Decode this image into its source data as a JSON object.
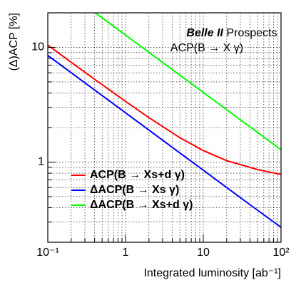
{
  "chart_data": {
    "type": "line",
    "label": "Belle II",
    "title": "Prospects",
    "subtitle": "ACP(B → X γ)",
    "xlabel": "Integrated luminosity [ab⁻¹]",
    "ylabel": "(Δ)ACP [%]",
    "x": [
      0.1,
      0.2,
      0.4,
      1,
      2,
      5,
      10,
      20,
      50,
      100
    ],
    "series": [
      {
        "name": "ACP(B → Xs+d γ)",
        "color": "#ff0000",
        "values": [
          10.46,
          7.41,
          5.27,
          3.38,
          2.44,
          1.63,
          1.26,
          1.03,
          0.86,
          0.78
        ]
      },
      {
        "name": "ΔACP(B → Xs γ)",
        "color": "#0000ff",
        "values": [
          8.5,
          6.01,
          4.25,
          2.69,
          1.9,
          1.2,
          0.85,
          0.6,
          0.38,
          0.27
        ]
      },
      {
        "name": "ΔACP(B → Xs+d γ)",
        "color": "#00ff00",
        "values": [
          null,
          null,
          20.2,
          12.8,
          9.05,
          5.72,
          4.05,
          2.86,
          1.81,
          1.28
        ]
      }
    ],
    "xlim": [
      0.1,
      100
    ],
    "ylim": [
      0.2,
      20
    ],
    "xticks": [
      {
        "value": 0.1,
        "label": "10⁻¹"
      },
      1,
      10,
      {
        "value": 100,
        "label": "10²"
      }
    ],
    "yticks": [
      1,
      10
    ],
    "xlog": true,
    "ylog": true,
    "grid": true,
    "legend": "lower left"
  }
}
